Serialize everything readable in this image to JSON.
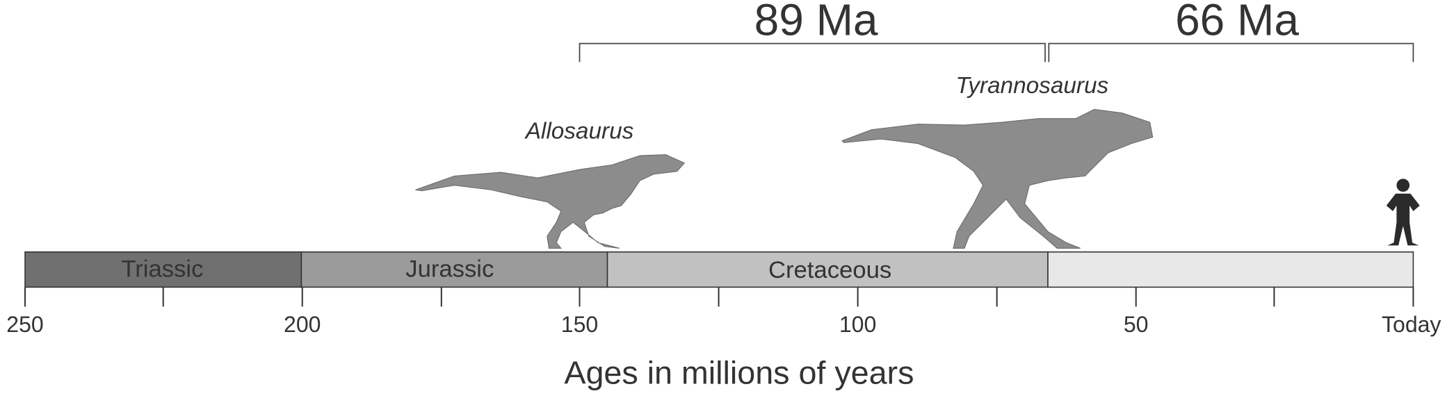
{
  "axis": {
    "title": "Ages in millions of years",
    "tick_labels": [
      "250",
      "200",
      "150",
      "100",
      "50",
      "Today"
    ]
  },
  "periods": [
    "Triassic",
    "Jurassic",
    "Cretaceous"
  ],
  "spans": [
    "89 Ma",
    "66 Ma"
  ],
  "dinosaurs": [
    "Allosaurus",
    "Tyrannosaurus"
  ]
}
